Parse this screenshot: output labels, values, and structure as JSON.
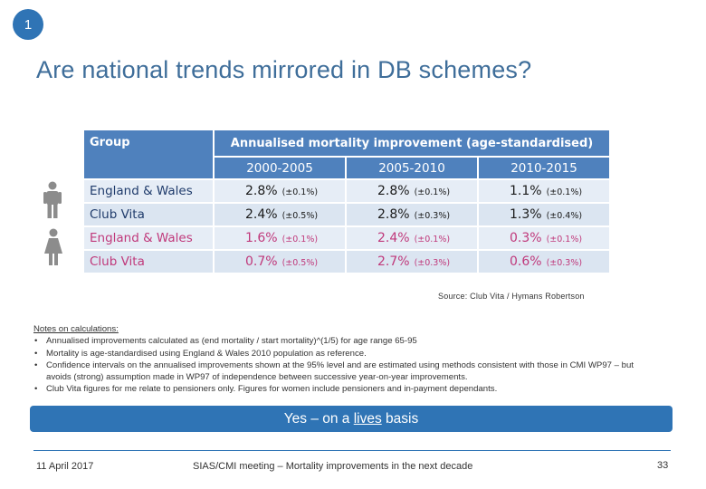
{
  "slide": {
    "number": "1",
    "title": "Are national trends mirrored in DB schemes?",
    "source": "Source: Club Vita / Hymans Robertson"
  },
  "table": {
    "header": {
      "group": "Group",
      "measure": "Annualised mortality improvement (age-standardised)",
      "periods": [
        "2000-2005",
        "2005-2010",
        "2010-2015"
      ]
    },
    "rows": [
      {
        "label": "England & Wales",
        "sex": "male",
        "cells": [
          {
            "pct": "2.8%",
            "ci": "(±0.1%)"
          },
          {
            "pct": "2.8%",
            "ci": "(±0.1%)"
          },
          {
            "pct": "1.1%",
            "ci": "(±0.1%)"
          }
        ]
      },
      {
        "label": "Club Vita",
        "sex": "male",
        "cells": [
          {
            "pct": "2.4%",
            "ci": "(±0.5%)"
          },
          {
            "pct": "2.8%",
            "ci": "(±0.3%)"
          },
          {
            "pct": "1.3%",
            "ci": "(±0.4%)"
          }
        ]
      },
      {
        "label": "England & Wales",
        "sex": "female",
        "cells": [
          {
            "pct": "1.6%",
            "ci": "(±0.1%)"
          },
          {
            "pct": "2.4%",
            "ci": "(±0.1%)"
          },
          {
            "pct": "0.3%",
            "ci": "(±0.1%)"
          }
        ]
      },
      {
        "label": "Club Vita",
        "sex": "female",
        "cells": [
          {
            "pct": "0.7%",
            "ci": "(±0.5%)"
          },
          {
            "pct": "2.7%",
            "ci": "(±0.3%)"
          },
          {
            "pct": "0.6%",
            "ci": "(±0.3%)"
          }
        ]
      }
    ]
  },
  "notes": {
    "heading": "Notes on calculations:",
    "items": [
      "Annualised improvements calculated as (end mortality / start mortality)^(1/5) for age range 65-95",
      "Mortality is age-standardised using England & Wales 2010 population as reference.",
      "Confidence intervals on the annualised improvements shown at the 95% level and are estimated using methods consistent with those in CMI WP97 – but avoids (strong) assumption made in WP97 of independence between successive year-on-year improvements.",
      "Club Vita figures for me relate to pensioners only. Figures for women include pensioners and in-payment dependants."
    ]
  },
  "banner": {
    "before": "Yes – on a ",
    "emphasis": "lives",
    "after": " basis"
  },
  "footer": {
    "date": "11 April 2017",
    "meeting": "SIAS/CMI meeting – Mortality improvements in the next decade",
    "page": "33"
  },
  "icons": {
    "male": "male-person-icon",
    "female": "female-person-icon"
  },
  "colors": {
    "accent": "#2f74b5",
    "header": "#4f81bd",
    "female": "#c0397b",
    "male_label": "#1f3b6b"
  }
}
